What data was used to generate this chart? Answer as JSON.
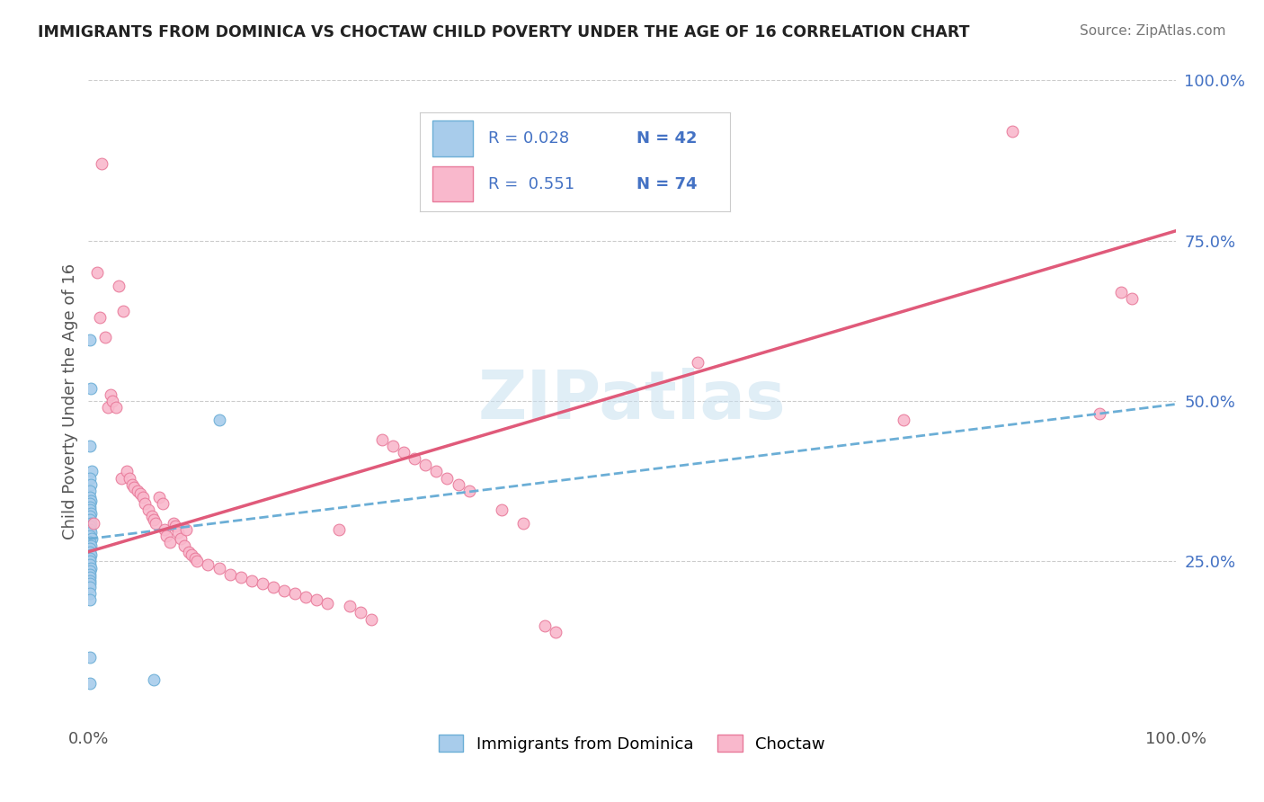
{
  "title": "IMMIGRANTS FROM DOMINICA VS CHOCTAW CHILD POVERTY UNDER THE AGE OF 16 CORRELATION CHART",
  "source": "Source: ZipAtlas.com",
  "ylabel": "Child Poverty Under the Age of 16",
  "xlim": [
    0,
    1.0
  ],
  "ylim": [
    0,
    1.0
  ],
  "ytick_values": [
    0.25,
    0.5,
    0.75,
    1.0
  ],
  "ytick_labels": [
    "25.0%",
    "50.0%",
    "75.0%",
    "100.0%"
  ],
  "watermark": "ZIPatlas",
  "legend_r1": "R = 0.028",
  "legend_n1": "N = 42",
  "legend_r2": "R =  0.551",
  "legend_n2": "N = 74",
  "blue_face": "#a8cceb",
  "blue_edge": "#6baed6",
  "pink_face": "#f9b8cc",
  "pink_edge": "#e87a9a",
  "trendline_blue": "#6baed6",
  "trendline_pink": "#e05a7a",
  "blue_scatter_x": [
    0.001,
    0.002,
    0.001,
    0.003,
    0.001,
    0.002,
    0.001,
    0.001,
    0.002,
    0.001,
    0.001,
    0.001,
    0.002,
    0.001,
    0.001,
    0.002,
    0.001,
    0.001,
    0.002,
    0.001,
    0.003,
    0.001,
    0.002,
    0.001,
    0.001,
    0.002,
    0.001,
    0.001,
    0.001,
    0.002,
    0.001,
    0.001,
    0.001,
    0.001,
    0.001,
    0.001,
    0.001,
    0.001,
    0.12,
    0.001,
    0.06,
    0.001
  ],
  "blue_scatter_y": [
    0.595,
    0.52,
    0.43,
    0.39,
    0.38,
    0.37,
    0.36,
    0.35,
    0.345,
    0.34,
    0.335,
    0.33,
    0.325,
    0.32,
    0.315,
    0.31,
    0.305,
    0.3,
    0.295,
    0.29,
    0.285,
    0.28,
    0.275,
    0.27,
    0.265,
    0.26,
    0.255,
    0.25,
    0.245,
    0.24,
    0.235,
    0.23,
    0.225,
    0.22,
    0.215,
    0.21,
    0.2,
    0.19,
    0.47,
    0.1,
    0.065,
    0.06
  ],
  "pink_scatter_x": [
    0.005,
    0.008,
    0.01,
    0.012,
    0.015,
    0.018,
    0.02,
    0.022,
    0.025,
    0.028,
    0.03,
    0.032,
    0.035,
    0.038,
    0.04,
    0.042,
    0.045,
    0.048,
    0.05,
    0.052,
    0.055,
    0.058,
    0.06,
    0.062,
    0.065,
    0.068,
    0.07,
    0.072,
    0.075,
    0.078,
    0.08,
    0.082,
    0.085,
    0.088,
    0.09,
    0.092,
    0.095,
    0.098,
    0.1,
    0.11,
    0.12,
    0.13,
    0.14,
    0.15,
    0.16,
    0.17,
    0.18,
    0.19,
    0.2,
    0.21,
    0.22,
    0.23,
    0.24,
    0.25,
    0.26,
    0.27,
    0.28,
    0.29,
    0.3,
    0.31,
    0.32,
    0.33,
    0.34,
    0.35,
    0.38,
    0.4,
    0.42,
    0.43,
    0.56,
    0.75,
    0.85,
    0.93,
    0.95,
    0.96
  ],
  "pink_scatter_y": [
    0.31,
    0.7,
    0.63,
    0.87,
    0.6,
    0.49,
    0.51,
    0.5,
    0.49,
    0.68,
    0.38,
    0.64,
    0.39,
    0.38,
    0.37,
    0.365,
    0.36,
    0.355,
    0.35,
    0.34,
    0.33,
    0.32,
    0.315,
    0.31,
    0.35,
    0.34,
    0.3,
    0.29,
    0.28,
    0.31,
    0.305,
    0.295,
    0.285,
    0.275,
    0.3,
    0.265,
    0.26,
    0.255,
    0.25,
    0.245,
    0.24,
    0.23,
    0.225,
    0.22,
    0.215,
    0.21,
    0.205,
    0.2,
    0.195,
    0.19,
    0.185,
    0.3,
    0.18,
    0.17,
    0.16,
    0.44,
    0.43,
    0.42,
    0.41,
    0.4,
    0.39,
    0.38,
    0.37,
    0.36,
    0.33,
    0.31,
    0.15,
    0.14,
    0.56,
    0.47,
    0.92,
    0.48,
    0.67,
    0.66
  ],
  "blue_trend_x": [
    0.0,
    1.0
  ],
  "blue_trend_y": [
    0.285,
    0.495
  ],
  "pink_trend_x": [
    0.0,
    1.0
  ],
  "pink_trend_y": [
    0.265,
    0.765
  ]
}
